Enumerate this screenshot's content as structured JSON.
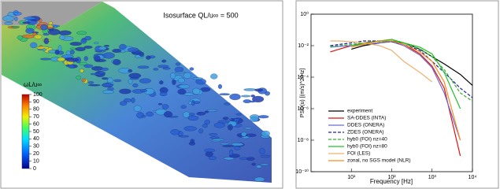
{
  "visualization": {
    "title": "Isosurface QL/u∞ = 500",
    "colorbar_label": "ωL/u∞",
    "colorbar_lim": [
      0,
      100
    ],
    "colorbar_ticks": [
      100,
      90,
      80,
      70,
      60,
      50,
      40,
      30,
      20,
      10,
      0
    ]
  },
  "chart_data": {
    "type": "line",
    "xlabel": "Frequency [Hz]",
    "ylabel": "PSD(u) [(m/s)^2/Hz]",
    "log_x": true,
    "log_y": true,
    "legend": "lower left",
    "xlim": [
      1,
      10000
    ],
    "xticks": [
      {
        "value": 10,
        "label": "10¹"
      },
      {
        "value": 100,
        "label": "10²"
      },
      {
        "value": 1000,
        "label": "10³"
      },
      {
        "value": 10000,
        "label": "10⁴"
      }
    ],
    "ylim": [
      1e-10,
      1
    ],
    "yticks": [
      {
        "value": 1,
        "label": "10⁰"
      },
      {
        "value": 0.01,
        "label": "10⁻²"
      },
      {
        "value": 0.0001,
        "label": "10⁻⁴"
      },
      {
        "value": 1e-06,
        "label": "10⁻⁶"
      },
      {
        "value": 1e-08,
        "label": "10⁻⁸"
      },
      {
        "value": 1e-10,
        "label": "10⁻¹⁰"
      }
    ],
    "x": [
      3,
      5,
      10,
      20,
      50,
      100,
      200,
      500,
      1000,
      2000,
      5000,
      10000
    ],
    "series": [
      {
        "name": "experiment",
        "color": "#000000",
        "dash": false,
        "values": [
          null,
          null,
          0.006,
          0.01,
          0.015,
          0.02,
          0.015,
          0.006,
          0.002,
          0.0007,
          0.00015,
          3e-05
        ]
      },
      {
        "name": "SA-DDES (INTA)",
        "color": "#e01010",
        "dash": false,
        "values": [
          0.004,
          0.006,
          0.01,
          0.015,
          0.02,
          0.02,
          0.012,
          0.003,
          0.0005,
          2e-05,
          1e-09,
          null
        ]
      },
      {
        "name": "DDES (ONERA)",
        "color": "#6a6ad8",
        "dash": false,
        "values": [
          0.008,
          0.009,
          0.01,
          0.012,
          0.015,
          0.018,
          0.01,
          0.0025,
          0.0004,
          1e-05,
          1e-08,
          null
        ]
      },
      {
        "name": "ZDES (ONERA)",
        "color": "#2020a0",
        "dash": true,
        "values": [
          0.01,
          0.012,
          0.015,
          0.02,
          0.02,
          0.018,
          0.012,
          0.005,
          0.001,
          0.0002,
          2e-05,
          5e-06
        ]
      },
      {
        "name": "hyb0 (FOI) nz=40",
        "color": "#30b030",
        "dash": true,
        "values": [
          0.009,
          0.01,
          0.012,
          0.015,
          0.018,
          0.02,
          0.015,
          0.006,
          0.002,
          0.0003,
          1e-05,
          3e-06
        ]
      },
      {
        "name": "hyb0 (FOI) nz=80",
        "color": "#20c020",
        "dash": false,
        "values": [
          null,
          null,
          0.01,
          0.014,
          0.02,
          0.025,
          0.015,
          0.008,
          0.003,
          0.0002,
          1e-06,
          null
        ]
      },
      {
        "name": "FOI (LES)",
        "color": "#f0b070",
        "dash": false,
        "values": [
          0.02,
          0.02,
          0.018,
          0.015,
          0.01,
          0.005,
          0.001,
          0.0002,
          5e-05,
          null,
          null,
          null
        ]
      },
      {
        "name": "zonal, no SGS model (NLR)",
        "color": "#ff8c1a",
        "dash": false,
        "values": [
          null,
          null,
          0.008,
          0.012,
          0.02,
          0.02,
          0.012,
          0.004,
          0.001,
          5e-05,
          1e-08,
          null
        ]
      }
    ]
  }
}
